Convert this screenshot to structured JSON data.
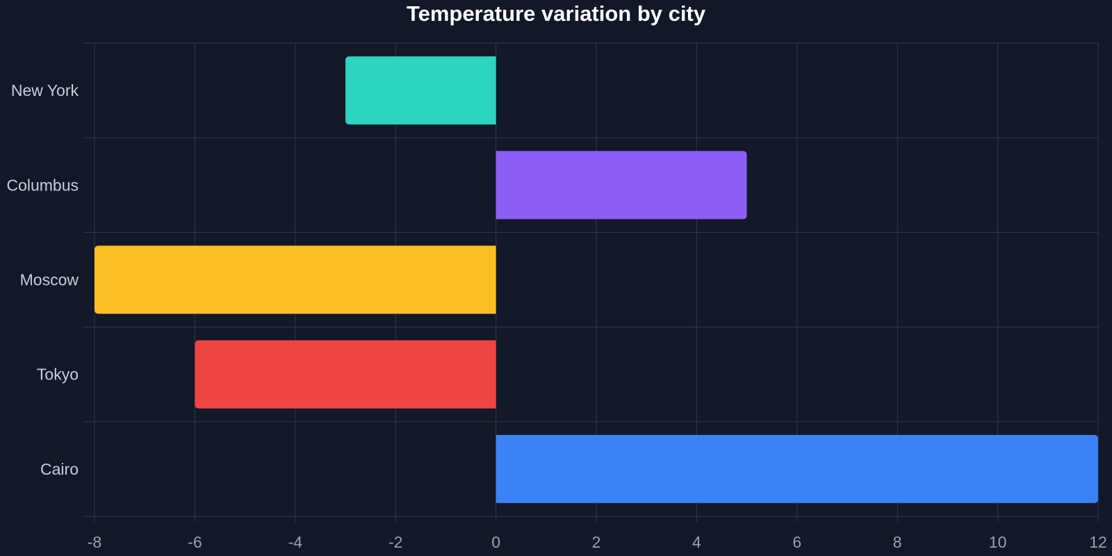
{
  "chart_data": {
    "type": "bar",
    "orientation": "horizontal",
    "title": "Temperature variation by city",
    "xlabel": "",
    "ylabel": "",
    "categories": [
      "New York",
      "Columbus",
      "Moscow",
      "Tokyo",
      "Cairo"
    ],
    "values": [
      -3,
      5,
      -8,
      -6,
      12
    ],
    "bar_colors": [
      "#2dd4bf",
      "#8b5cf6",
      "#fbbf24",
      "#ef4444",
      "#3b82f6"
    ],
    "xlim": [
      -8,
      12
    ],
    "x_ticks": [
      "-8",
      "-6",
      "-4",
      "-2",
      "0",
      "2",
      "4",
      "6",
      "8",
      "10",
      "12"
    ],
    "grid": true,
    "legend": "none",
    "background_color": "#111827"
  }
}
